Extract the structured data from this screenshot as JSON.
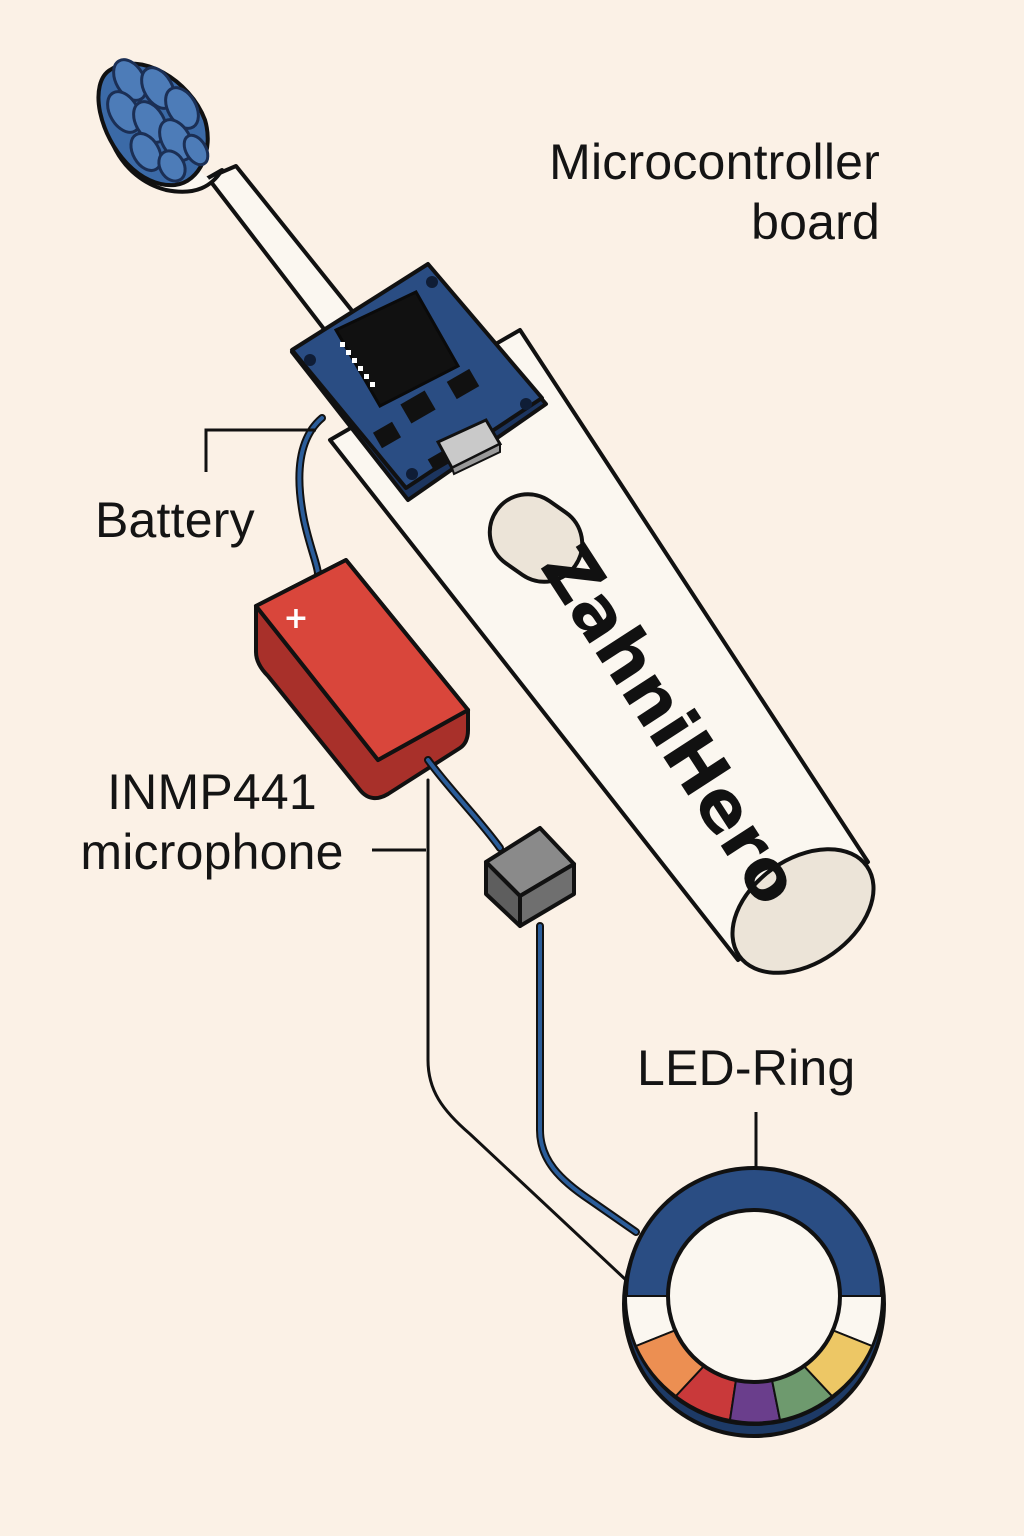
{
  "brand": {
    "text": "ZahniHero"
  },
  "labels": {
    "microcontroller_line1": "Microcontroller",
    "microcontroller_line2": "board",
    "battery": "Battery",
    "microphone_line1": "INMP441",
    "microphone_line2": "microphone",
    "led_ring": "LED-Ring"
  },
  "battery_symbol": "+",
  "colors": {
    "background": "#fbf1e6",
    "board_blue": "#2a4d83",
    "bristle_blue": "#3b6aa7",
    "battery_red": "#d9463b",
    "wire_blue": "#2b5d9a",
    "ring_blue": "#2a4d83",
    "connector_gray": "#6f6f6f",
    "ring_segments": [
      "#ec8f52",
      "#c9393a",
      "#6a3e8c",
      "#6e9a6e",
      "#edc765"
    ]
  },
  "icons": {
    "toothbrush": "toothbrush-icon",
    "board": "circuit-board-icon",
    "battery": "battery-icon",
    "connector": "connector-block-icon",
    "led_ring": "led-ring-icon"
  }
}
